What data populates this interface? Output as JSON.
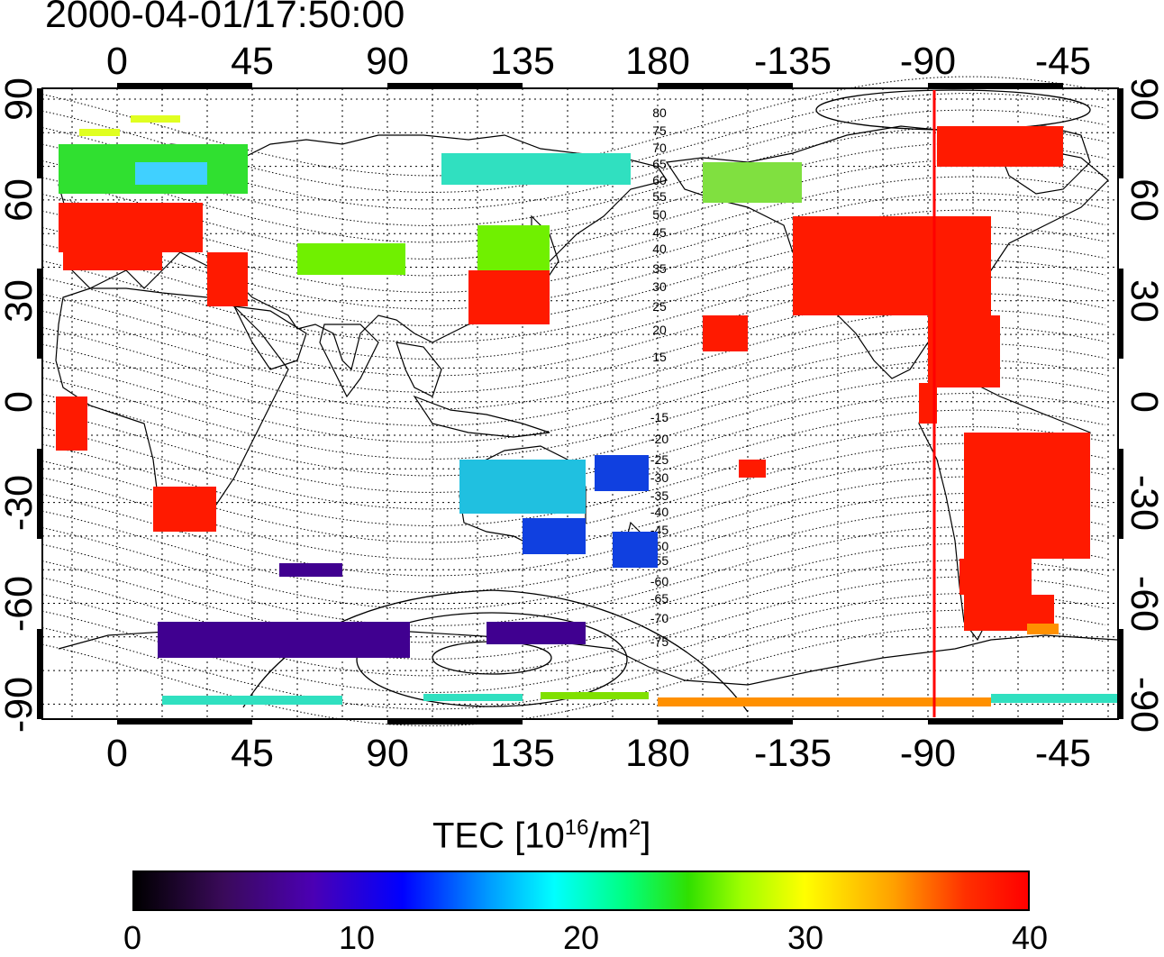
{
  "title": "2000-04-01/17:50:00",
  "map": {
    "top_lon_labels": [
      "0",
      "45",
      "90",
      "135",
      "180",
      "-135",
      "-90",
      "-45"
    ],
    "bottom_lon_labels": [
      "0",
      "45",
      "90",
      "135",
      "180",
      "-135",
      "-90",
      "-45"
    ],
    "left_lat_labels": [
      "90",
      "60",
      "30",
      "0",
      "-30",
      "-60",
      "-90"
    ],
    "right_lat_labels": [
      "90",
      "60",
      "30",
      "0",
      "-30",
      "-60",
      "-90"
    ],
    "contour_labels_north": [
      "80",
      "75",
      "70",
      "65",
      "60",
      "55",
      "50",
      "45",
      "40",
      "35",
      "30",
      "25",
      "20",
      "15"
    ],
    "contour_labels_south": [
      "-15",
      "-20",
      "-25",
      "-30",
      "-35",
      "-40",
      "-45",
      "-50",
      "-55",
      "-60",
      "-65",
      "-70",
      "-75"
    ],
    "marker_longitude": -90,
    "marker_color": "#ff0000"
  },
  "colorbar": {
    "title_prefix": "TEC  [10",
    "title_exp1": "16",
    "title_mid": "/m",
    "title_exp2": "2",
    "title_suffix": "]",
    "ticks": [
      "0",
      "10",
      "20",
      "30",
      "40"
    ],
    "min": 0,
    "max": 40
  }
}
